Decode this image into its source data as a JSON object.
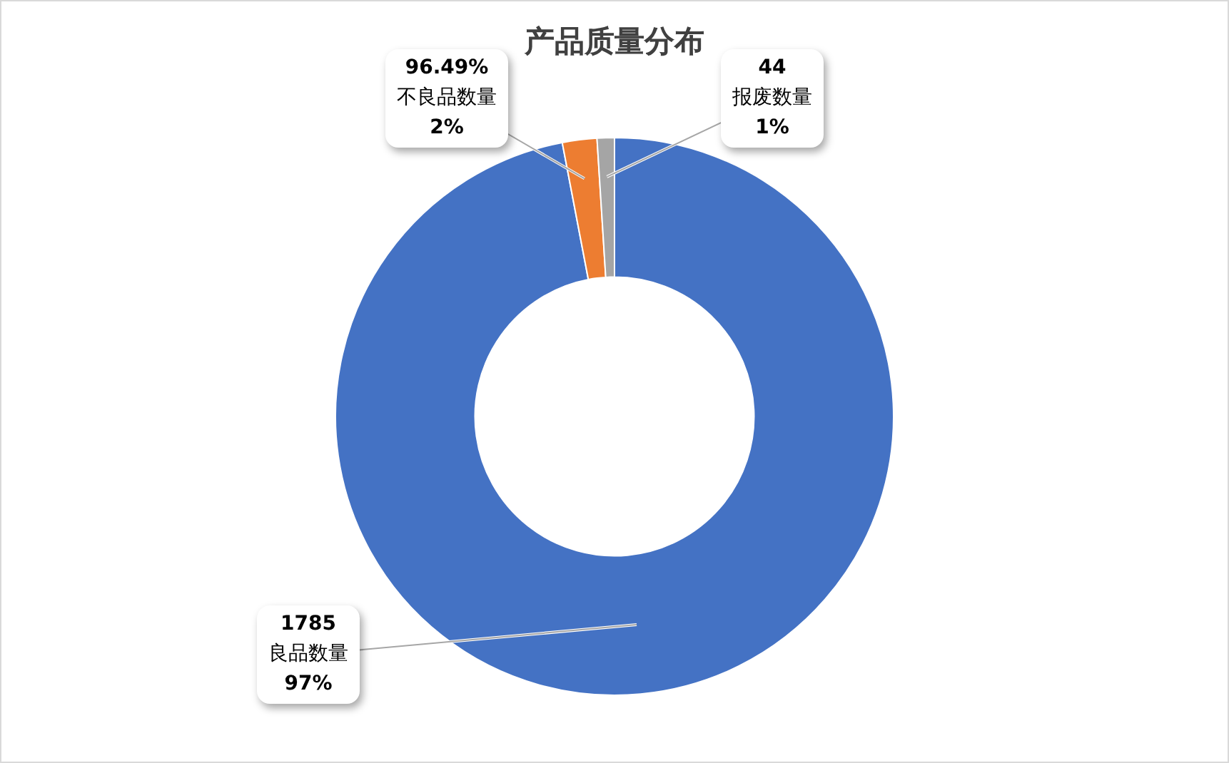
{
  "chart_data": {
    "type": "donut",
    "title": "产品质量分布",
    "categories": [
      "良品数量",
      "不良品数量",
      "报废数量"
    ],
    "values": [
      97,
      2,
      1
    ],
    "colors": [
      "#4472c4",
      "#ed7d31",
      "#a5a5a5"
    ],
    "value_labels": [
      "97%",
      "2%",
      "1%"
    ],
    "annotations": [
      {
        "text": "1785",
        "x": "良品数量"
      },
      {
        "text": "96.49%",
        "x": "不良品数量"
      },
      {
        "text": "44",
        "x": "报废数量"
      }
    ],
    "legend": false
  }
}
